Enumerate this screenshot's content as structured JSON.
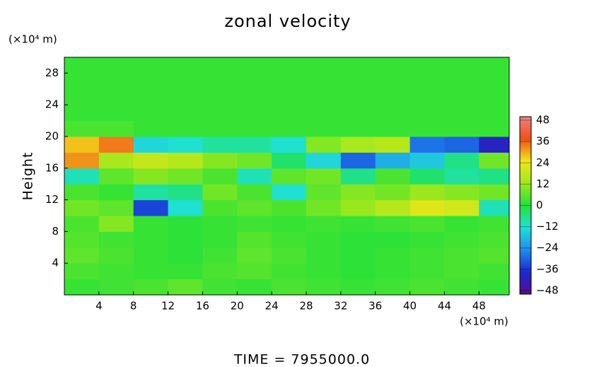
{
  "chart_data": {
    "type": "heatmap",
    "title": "zonal velocity",
    "y_label": "Height",
    "x_unit": "(×10⁴ m)",
    "y_unit": "(×10⁴ m)",
    "footer": "TIME = 7955000.0",
    "x": [
      2,
      6,
      10,
      14,
      18,
      22,
      26,
      30,
      34,
      38,
      42,
      46,
      50
    ],
    "y": [
      1,
      3,
      5,
      7,
      9,
      11,
      13,
      15,
      17,
      19,
      21,
      23,
      25,
      27,
      29
    ],
    "z": [
      [
        2,
        3,
        4,
        6,
        3,
        2,
        4,
        3,
        2,
        3,
        4,
        3,
        2
      ],
      [
        4,
        3,
        2,
        2,
        4,
        5,
        3,
        2,
        1,
        2,
        3,
        4,
        3
      ],
      [
        6,
        4,
        2,
        1,
        3,
        6,
        4,
        2,
        1,
        2,
        3,
        4,
        5
      ],
      [
        5,
        3,
        2,
        1,
        2,
        5,
        3,
        2,
        1,
        1,
        2,
        3,
        4
      ],
      [
        4,
        10,
        2,
        1,
        2,
        3,
        2,
        3,
        2,
        3,
        4,
        2,
        3
      ],
      [
        8,
        6,
        -34,
        -12,
        4,
        6,
        4,
        8,
        12,
        16,
        22,
        20,
        -10
      ],
      [
        4,
        2,
        -8,
        -6,
        8,
        4,
        -12,
        6,
        10,
        8,
        12,
        10,
        8
      ],
      [
        -10,
        6,
        10,
        8,
        4,
        -10,
        6,
        8,
        -6,
        4,
        -4,
        -8,
        -6
      ],
      [
        32,
        14,
        18,
        16,
        10,
        8,
        -4,
        -14,
        -30,
        -20,
        -16,
        -6,
        8
      ],
      [
        28,
        34,
        -14,
        -12,
        -8,
        -8,
        -12,
        10,
        14,
        16,
        -28,
        -30,
        -40
      ],
      [
        4,
        4,
        2,
        2,
        2,
        2,
        2,
        2,
        2,
        2,
        2,
        2,
        2
      ],
      [
        2,
        2,
        2,
        2,
        2,
        2,
        2,
        2,
        2,
        2,
        2,
        2,
        2
      ],
      [
        2,
        2,
        2,
        2,
        2,
        2,
        2,
        2,
        2,
        2,
        2,
        2,
        2
      ],
      [
        2,
        2,
        2,
        2,
        2,
        2,
        2,
        2,
        2,
        2,
        2,
        2,
        2
      ],
      [
        2,
        2,
        2,
        2,
        2,
        2,
        2,
        2,
        2,
        2,
        2,
        2,
        2
      ]
    ],
    "xlim": [
      0,
      51.5
    ],
    "ylim": [
      0,
      30
    ],
    "xticks": [
      4,
      8,
      12,
      16,
      20,
      24,
      28,
      32,
      36,
      40,
      44,
      48
    ],
    "yticks": [
      4,
      8,
      12,
      16,
      20,
      24,
      28
    ],
    "clim": [
      -50,
      50
    ],
    "colors": [
      "#5a0a8a",
      "#1a2ad0",
      "#1e8cf0",
      "#20e0d8",
      "#22e23a",
      "#9ee81c",
      "#f2e61a",
      "#f0501a",
      "#f08080"
    ],
    "cticks": [
      48,
      36,
      24,
      12,
      0,
      {
        "value": -12,
        "label": "−12"
      },
      {
        "value": -24,
        "label": "−24"
      },
      {
        "value": -36,
        "label": "−36"
      },
      {
        "value": -48,
        "label": "−48"
      }
    ]
  }
}
